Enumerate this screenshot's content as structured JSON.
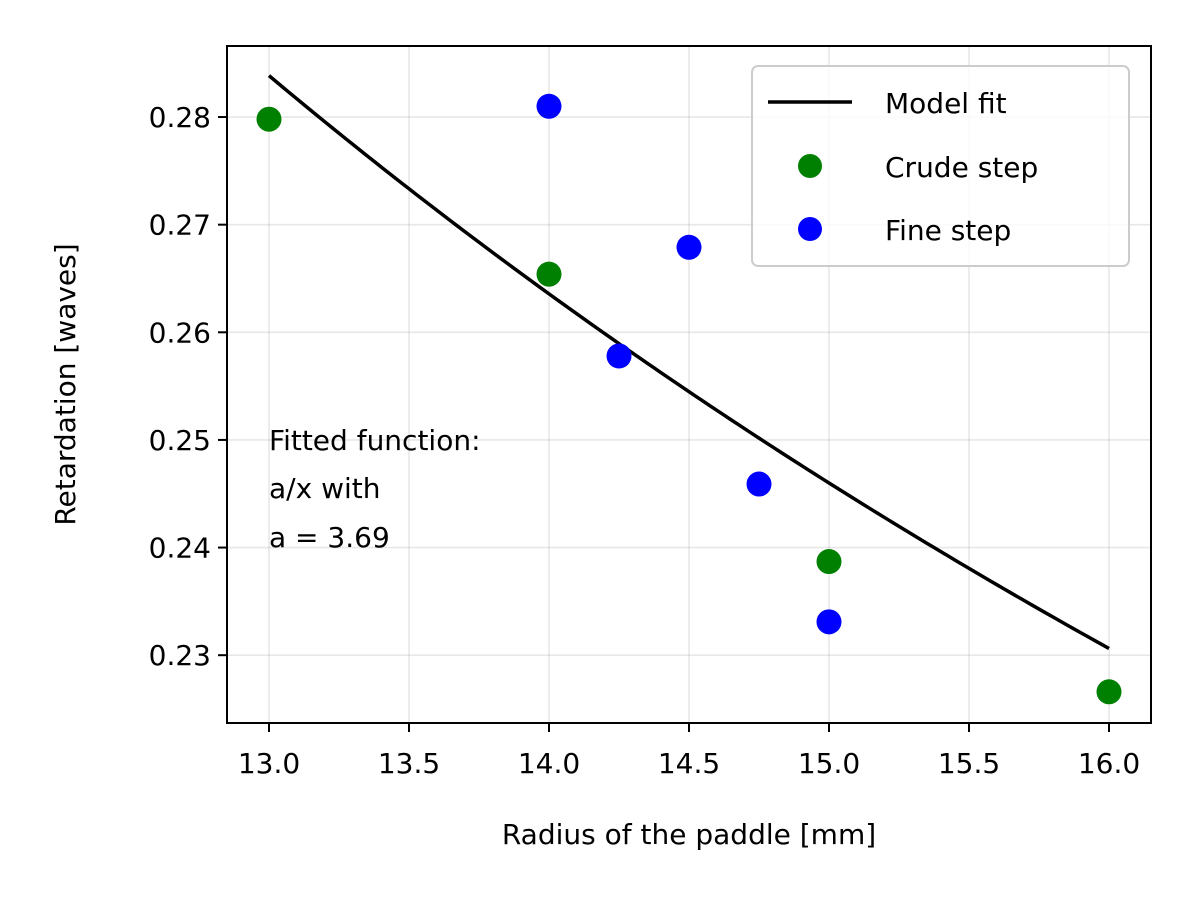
{
  "chart_data": {
    "type": "scatter",
    "xlabel": "Radius of the paddle [mm]",
    "ylabel": "Retardation [waves]",
    "xlim": [
      12.85,
      16.15
    ],
    "ylim": [
      0.2237,
      0.2866
    ],
    "xticks": [
      13.0,
      13.5,
      14.0,
      14.5,
      15.0,
      15.5,
      16.0
    ],
    "xtick_labels": [
      "13.0",
      "13.5",
      "14.0",
      "14.5",
      "15.0",
      "15.5",
      "16.0"
    ],
    "yticks": [
      0.23,
      0.24,
      0.25,
      0.26,
      0.27,
      0.28
    ],
    "ytick_labels": [
      "0.23",
      "0.24",
      "0.25",
      "0.26",
      "0.27",
      "0.28"
    ],
    "grid": true,
    "legend_position": "top-right",
    "model_fit": {
      "name": "Model fit",
      "type": "line",
      "color": "#000000",
      "a": 3.69,
      "x_range": [
        13.0,
        16.0
      ]
    },
    "series": [
      {
        "name": "Crude step",
        "type": "scatter",
        "color": "#008000",
        "points": [
          {
            "x": 13.0,
            "y": 0.2798
          },
          {
            "x": 14.0,
            "y": 0.2654
          },
          {
            "x": 15.0,
            "y": 0.2387
          },
          {
            "x": 16.0,
            "y": 0.2266
          }
        ]
      },
      {
        "name": "Fine step",
        "type": "scatter",
        "color": "#0000ff",
        "points": [
          {
            "x": 14.0,
            "y": 0.281
          },
          {
            "x": 14.25,
            "y": 0.2578
          },
          {
            "x": 14.5,
            "y": 0.2679
          },
          {
            "x": 14.75,
            "y": 0.2459
          },
          {
            "x": 15.0,
            "y": 0.2331
          }
        ]
      }
    ],
    "annotation": {
      "lines": [
        "Fitted function:",
        "a/x with",
        "a = 3.69"
      ]
    }
  }
}
